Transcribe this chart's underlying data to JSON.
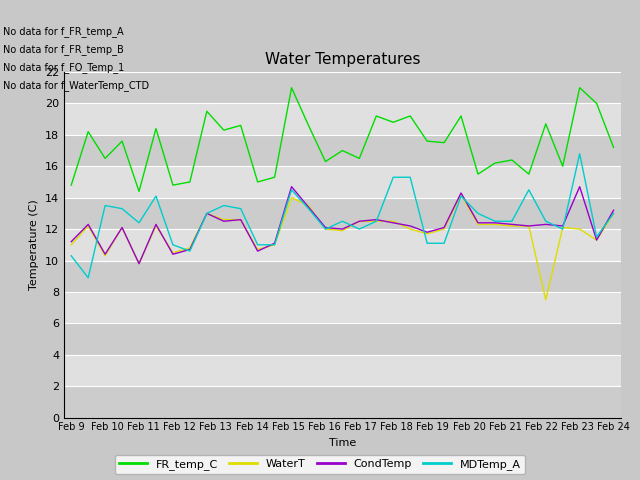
{
  "title": "Water Temperatures",
  "xlabel": "Time",
  "ylabel": "Temperature (C)",
  "fig_facecolor": "#c8c8c8",
  "axes_facecolor": "#d8d8d8",
  "band_light": "#e0e0e0",
  "band_dark": "#d0d0d0",
  "text_annotations": [
    "No data for f_FR_temp_A",
    "No data for f_FR_temp_B",
    "No data for f_FO_Temp_1",
    "No data for f_WaterTemp_CTD"
  ],
  "x_labels": [
    "Feb 9",
    "Feb 10",
    "Feb 11",
    "Feb 12",
    "Feb 13",
    "Feb 14",
    "Feb 15",
    "Feb 16",
    "Feb 17",
    "Feb 18",
    "Feb 19",
    "Feb 20",
    "Feb 21",
    "Feb 22",
    "Feb 23",
    "Feb 24"
  ],
  "ylim": [
    0,
    22
  ],
  "yticks": [
    0,
    2,
    4,
    6,
    8,
    10,
    12,
    14,
    16,
    18,
    20,
    22
  ],
  "FR_temp_C": [
    14.8,
    18.2,
    16.5,
    17.6,
    14.4,
    18.4,
    14.8,
    15.0,
    19.5,
    18.3,
    18.6,
    15.0,
    15.3,
    21.0,
    18.6,
    16.3,
    17.0,
    16.5,
    19.2,
    18.8,
    19.2,
    17.6,
    17.5,
    19.2,
    15.5,
    16.2,
    16.4,
    15.5,
    18.7,
    16.0,
    21.0,
    20.0,
    17.2
  ],
  "WaterT": [
    11.0,
    12.2,
    10.3,
    12.1,
    9.8,
    12.2,
    10.5,
    10.8,
    13.0,
    12.6,
    12.6,
    10.7,
    11.0,
    14.0,
    13.5,
    12.0,
    11.9,
    12.5,
    12.5,
    12.5,
    12.0,
    11.7,
    12.0,
    14.2,
    12.3,
    12.3,
    12.2,
    12.2,
    7.5,
    12.1,
    12.0,
    11.3,
    13.0
  ],
  "CondTemp": [
    11.2,
    12.3,
    10.4,
    12.1,
    9.8,
    12.3,
    10.4,
    10.7,
    13.0,
    12.5,
    12.6,
    10.6,
    11.1,
    14.7,
    13.4,
    12.1,
    12.0,
    12.5,
    12.6,
    12.4,
    12.2,
    11.8,
    12.1,
    14.3,
    12.4,
    12.4,
    12.3,
    12.2,
    12.3,
    12.2,
    14.7,
    11.3,
    13.2
  ],
  "MDTemp_A": [
    10.3,
    8.9,
    13.5,
    13.3,
    12.4,
    14.1,
    11.0,
    10.6,
    13.0,
    13.5,
    13.3,
    11.0,
    11.0,
    14.5,
    13.3,
    12.0,
    12.5,
    12.0,
    12.5,
    15.3,
    15.3,
    11.1,
    11.1,
    14.1,
    13.0,
    12.5,
    12.5,
    14.5,
    12.5,
    12.0,
    16.8,
    11.5,
    13.0
  ],
  "legend_entries": [
    "FR_temp_C",
    "WaterT",
    "CondTemp",
    "MDTemp_A"
  ],
  "line_colors": {
    "FR_temp_C": "#00dd00",
    "WaterT": "#dddd00",
    "CondTemp": "#9900cc",
    "MDTemp_A": "#00cccc"
  }
}
